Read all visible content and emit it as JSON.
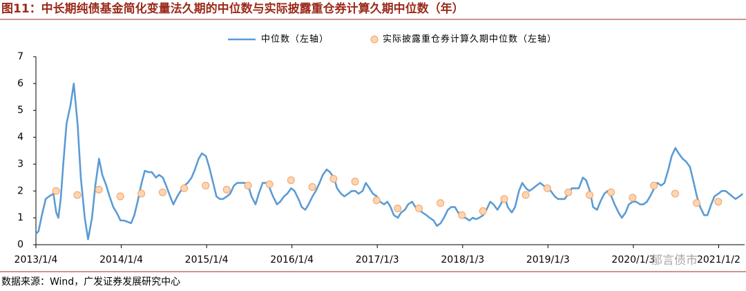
{
  "chart_data": {
    "type": "line",
    "title": "图11：中长期纯债基金简化变量法久期的中位数与实际披露重仓券计算久期中位数（年）",
    "source": "数据来源：Wind，广发证券发展研究中心",
    "watermark": "郁言债市",
    "xlim": [
      "2013/1/4",
      "2021/4/23"
    ],
    "xticks": [
      "2013/1/4",
      "2014/1/4",
      "2015/1/4",
      "2016/1/4",
      "2017/1/3",
      "2018/1/3",
      "2019/1/3",
      "2020/1/3",
      "2021/1/2"
    ],
    "ylim": [
      0,
      7
    ],
    "yticks": [
      0,
      1,
      2,
      3,
      4,
      5,
      6,
      7
    ],
    "legend": "top",
    "series": [
      {
        "name": "中位数（左轴）",
        "type": "line",
        "color": "#5b9bd5",
        "x": [
          "2013/1/4",
          "2013/1/15",
          "2013/2/1",
          "2013/2/15",
          "2013/3/1",
          "2013/3/20",
          "2013/4/1",
          "2013/4/10",
          "2013/4/20",
          "2013/5/1",
          "2013/5/15",
          "2013/6/1",
          "2013/6/15",
          "2013/7/1",
          "2013/7/15",
          "2013/8/1",
          "2013/8/15",
          "2013/9/1",
          "2013/9/15",
          "2013/10/1",
          "2013/10/15",
          "2013/11/1",
          "2013/11/15",
          "2013/12/1",
          "2013/12/15",
          "2014/1/1",
          "2014/1/15",
          "2014/2/1",
          "2014/2/15",
          "2014/3/1",
          "2014/3/15",
          "2014/4/1",
          "2014/4/15",
          "2014/5/1",
          "2014/5/15",
          "2014/6/1",
          "2014/6/15",
          "2014/7/1",
          "2014/7/15",
          "2014/8/1",
          "2014/8/15",
          "2014/9/1",
          "2014/9/15",
          "2014/10/1",
          "2014/10/15",
          "2014/11/1",
          "2014/11/15",
          "2014/12/1",
          "2014/12/15",
          "2015/1/1",
          "2015/1/15",
          "2015/2/1",
          "2015/2/15",
          "2015/3/1",
          "2015/3/15",
          "2015/4/1",
          "2015/4/15",
          "2015/5/1",
          "2015/5/15",
          "2015/6/1",
          "2015/6/15",
          "2015/7/1",
          "2015/7/15",
          "2015/8/1",
          "2015/8/15",
          "2015/9/1",
          "2015/9/15",
          "2015/10/1",
          "2015/10/15",
          "2015/11/1",
          "2015/11/15",
          "2015/12/1",
          "2015/12/15",
          "2016/1/1",
          "2016/1/15",
          "2016/2/1",
          "2016/2/15",
          "2016/3/1",
          "2016/3/15",
          "2016/4/1",
          "2016/4/15",
          "2016/5/1",
          "2016/5/15",
          "2016/6/1",
          "2016/6/15",
          "2016/7/1",
          "2016/7/15",
          "2016/8/1",
          "2016/8/15",
          "2016/9/1",
          "2016/9/15",
          "2016/10/1",
          "2016/10/15",
          "2016/11/1",
          "2016/11/15",
          "2016/12/1",
          "2016/12/15",
          "2017/1/1",
          "2017/1/15",
          "2017/2/1",
          "2017/2/15",
          "2017/3/1",
          "2017/3/15",
          "2017/4/1",
          "2017/4/15",
          "2017/5/1",
          "2017/5/15",
          "2017/6/1",
          "2017/6/15",
          "2017/7/1",
          "2017/7/15",
          "2017/8/1",
          "2017/8/15",
          "2017/9/1",
          "2017/9/15",
          "2017/10/1",
          "2017/10/15",
          "2017/11/1",
          "2017/11/15",
          "2017/12/1",
          "2017/12/15",
          "2018/1/1",
          "2018/1/15",
          "2018/2/1",
          "2018/2/15",
          "2018/3/1",
          "2018/3/15",
          "2018/4/1",
          "2018/4/15",
          "2018/5/1",
          "2018/5/15",
          "2018/6/1",
          "2018/6/15",
          "2018/7/1",
          "2018/7/15",
          "2018/8/1",
          "2018/8/15",
          "2018/9/1",
          "2018/9/15",
          "2018/10/1",
          "2018/10/15",
          "2018/11/1",
          "2018/11/15",
          "2018/12/1",
          "2018/12/15",
          "2019/1/1",
          "2019/1/15",
          "2019/2/1",
          "2019/2/15",
          "2019/3/1",
          "2019/3/15",
          "2019/4/1",
          "2019/4/15",
          "2019/5/1",
          "2019/5/15",
          "2019/6/1",
          "2019/6/15",
          "2019/7/1",
          "2019/7/15",
          "2019/8/1",
          "2019/8/15",
          "2019/9/1",
          "2019/9/15",
          "2019/10/1",
          "2019/10/15",
          "2019/11/1",
          "2019/11/15",
          "2019/12/1",
          "2019/12/15",
          "2020/1/1",
          "2020/1/15",
          "2020/2/1",
          "2020/2/15",
          "2020/3/1",
          "2020/3/15",
          "2020/4/1",
          "2020/4/15",
          "2020/5/1",
          "2020/5/15",
          "2020/6/1",
          "2020/6/15",
          "2020/7/1",
          "2020/7/15",
          "2020/8/1",
          "2020/8/15",
          "2020/9/1",
          "2020/9/15",
          "2020/10/1",
          "2020/10/15",
          "2020/11/1",
          "2020/11/15",
          "2020/12/1",
          "2020/12/15",
          "2021/1/1",
          "2021/1/15",
          "2021/2/1",
          "2021/2/15",
          "2021/3/1",
          "2021/3/15",
          "2021/4/1",
          "2021/4/15"
        ],
        "values": [
          0.4,
          0.5,
          1.2,
          1.7,
          1.8,
          1.9,
          1.2,
          1.0,
          1.7,
          3.0,
          4.5,
          5.2,
          6.0,
          4.5,
          2.5,
          1.0,
          0.2,
          1.0,
          2.2,
          3.2,
          2.6,
          2.2,
          1.8,
          1.4,
          1.2,
          0.9,
          0.9,
          0.85,
          0.8,
          1.1,
          1.6,
          2.3,
          2.75,
          2.7,
          2.7,
          2.5,
          2.6,
          2.5,
          2.2,
          1.8,
          1.5,
          1.8,
          2.0,
          2.2,
          2.3,
          2.5,
          2.8,
          3.2,
          3.4,
          3.3,
          2.9,
          2.3,
          1.8,
          1.7,
          1.7,
          1.8,
          1.9,
          2.2,
          2.3,
          2.3,
          2.3,
          2.2,
          1.8,
          1.5,
          1.9,
          2.3,
          2.3,
          2.1,
          1.8,
          1.5,
          1.6,
          1.8,
          1.9,
          2.1,
          2.0,
          1.7,
          1.4,
          1.3,
          1.5,
          1.8,
          2.0,
          2.3,
          2.6,
          2.8,
          2.7,
          2.5,
          2.1,
          1.9,
          1.8,
          1.9,
          2.0,
          2.0,
          1.9,
          2.0,
          2.3,
          2.1,
          1.9,
          1.8,
          1.6,
          1.5,
          1.6,
          1.4,
          1.1,
          1.0,
          1.2,
          1.3,
          1.5,
          1.6,
          1.4,
          1.3,
          1.2,
          1.1,
          1.0,
          0.9,
          0.7,
          0.8,
          1.0,
          1.3,
          1.4,
          1.4,
          1.2,
          1.0,
          1.0,
          0.9,
          1.0,
          0.95,
          1.0,
          1.1,
          1.3,
          1.6,
          1.5,
          1.3,
          1.5,
          1.8,
          1.4,
          1.2,
          1.4,
          2.0,
          2.3,
          2.1,
          2.0,
          2.1,
          2.2,
          2.3,
          2.2,
          2.1,
          2.0,
          1.8,
          1.7,
          1.7,
          1.7,
          1.9,
          2.1,
          2.1,
          2.1,
          2.5,
          2.4,
          2.0,
          1.4,
          1.3,
          1.6,
          1.9,
          2.0,
          1.8,
          1.5,
          1.2,
          1.0,
          1.2,
          1.5,
          1.6,
          1.6,
          1.5,
          1.5,
          1.6,
          1.8,
          2.1,
          2.3,
          2.2,
          2.3,
          2.8,
          3.3,
          3.6,
          3.4,
          3.2,
          3.1,
          2.9,
          2.4,
          1.8,
          1.4,
          1.1,
          1.1,
          1.5,
          1.8,
          1.9,
          2.0,
          2.0,
          1.9,
          1.8,
          1.7,
          1.8,
          1.9
        ]
      },
      {
        "name": "实际披露重仓券计算久期中位数（左轴）",
        "type": "scatter",
        "color": "#fcd5b4",
        "edge": "#f4a060",
        "x": [
          "2013/3/31",
          "2013/6/30",
          "2013/9/30",
          "2013/12/31",
          "2014/3/31",
          "2014/6/30",
          "2014/9/30",
          "2014/12/31",
          "2015/3/31",
          "2015/6/30",
          "2015/9/30",
          "2015/12/31",
          "2016/3/31",
          "2016/6/30",
          "2016/9/30",
          "2016/12/31",
          "2017/3/31",
          "2017/6/30",
          "2017/9/30",
          "2017/12/31",
          "2018/3/31",
          "2018/6/30",
          "2018/9/30",
          "2018/12/31",
          "2019/3/31",
          "2019/6/30",
          "2019/9/30",
          "2019/12/31",
          "2020/3/31",
          "2020/6/30",
          "2020/9/30",
          "2020/12/31"
        ],
        "values": [
          2.0,
          1.85,
          2.05,
          1.8,
          1.9,
          1.95,
          2.1,
          2.2,
          2.05,
          2.2,
          2.25,
          2.4,
          2.15,
          2.45,
          2.35,
          1.65,
          1.35,
          1.35,
          1.55,
          1.1,
          1.25,
          1.7,
          1.85,
          2.1,
          1.95,
          1.85,
          1.95,
          1.75,
          2.2,
          1.9,
          1.55,
          1.6
        ]
      }
    ]
  }
}
